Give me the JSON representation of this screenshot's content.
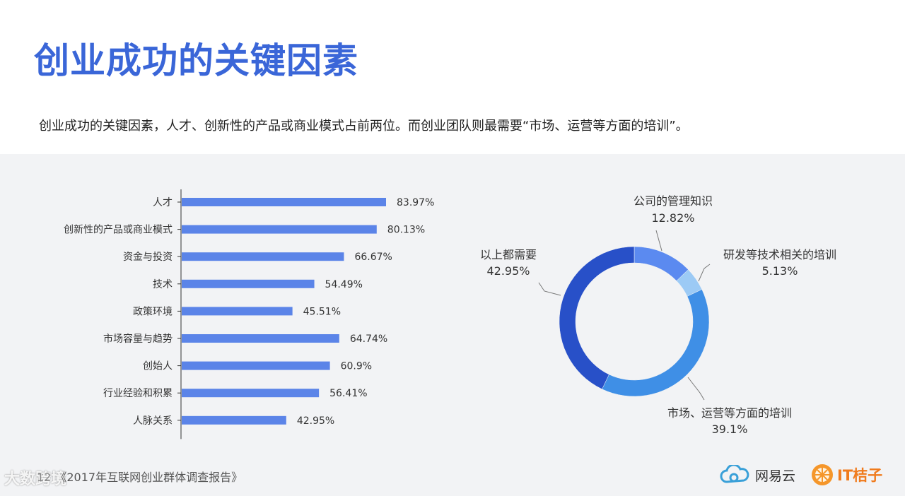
{
  "page": {
    "title": "创业成功的关键因素",
    "subtitle": "创业成功的关键因素，人才、创新性的产品或商业模式占前两位。而创业团队则最需要“市场、运营等方面的培训”。"
  },
  "chart_data": [
    {
      "type": "bar",
      "orientation": "horizontal",
      "categories": [
        "人才",
        "创新性的产品或商业模式",
        "资金与投资",
        "技术",
        "政策环境",
        "市场容量与趋势",
        "创始人",
        "行业经验和积累",
        "人脉关系"
      ],
      "values": [
        83.97,
        80.13,
        66.67,
        54.49,
        45.51,
        64.74,
        60.9,
        56.41,
        42.95
      ],
      "labels": [
        "83.97%",
        "80.13%",
        "66.67%",
        "54.49%",
        "45.51%",
        "64.74%",
        "60.9%",
        "56.41%",
        "42.95%"
      ],
      "xlim": [
        0,
        100
      ],
      "color": "#5b84e8"
    },
    {
      "type": "pie",
      "donut": true,
      "slices": [
        {
          "name": "公司的管理知识",
          "value": 12.82,
          "label": "12.82%",
          "color": "#5b8af0"
        },
        {
          "name": "研发等技术相关的培训",
          "value": 5.13,
          "label": "5.13%",
          "color": "#9ccaf5"
        },
        {
          "name": "市场、运营等方面的培训",
          "value": 39.1,
          "label": "39.1%",
          "color": "#3f8fe6"
        },
        {
          "name": "以上都需要",
          "value": 42.95,
          "label": "42.95%",
          "color": "#2850c8"
        }
      ]
    }
  ],
  "footer": {
    "page_number": "12",
    "source": "《2017年互联网创业群体调查报告》",
    "watermark": "大数跨境",
    "logo_netease": "网易云",
    "logo_it": "IT桔子"
  }
}
